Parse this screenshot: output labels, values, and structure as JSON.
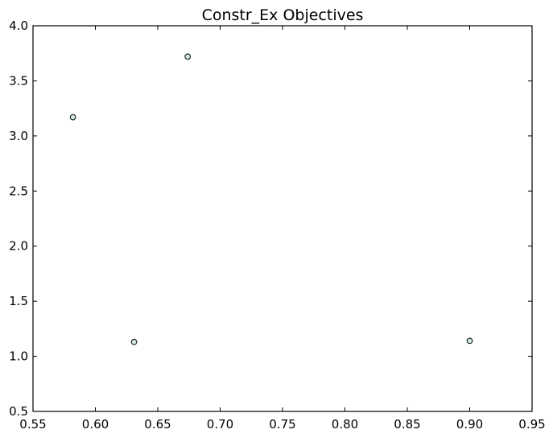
{
  "chart_data": {
    "type": "scatter",
    "title": "Constr_Ex Objectives",
    "xlabel": "",
    "ylabel": "",
    "xlim": [
      0.55,
      0.95
    ],
    "ylim": [
      0.5,
      4.0
    ],
    "xticks": [
      0.55,
      0.6,
      0.65,
      0.7,
      0.75,
      0.8,
      0.85,
      0.9,
      0.95
    ],
    "xtick_labels": [
      "0.55",
      "0.60",
      "0.65",
      "0.70",
      "0.75",
      "0.80",
      "0.85",
      "0.90",
      "0.95"
    ],
    "yticks": [
      0.5,
      1.0,
      1.5,
      2.0,
      2.5,
      3.0,
      3.5,
      4.0
    ],
    "ytick_labels": [
      "0.5",
      "1.0",
      "1.5",
      "2.0",
      "2.5",
      "3.0",
      "3.5",
      "4.0"
    ],
    "grid": false,
    "marker_fill": "#d4ebe4",
    "marker_edge": "#1f2a28",
    "series": [
      {
        "points": [
          {
            "x": 0.582,
            "y": 3.17
          },
          {
            "x": 0.674,
            "y": 3.72
          },
          {
            "x": 0.631,
            "y": 1.13
          },
          {
            "x": 0.9,
            "y": 1.14
          }
        ]
      }
    ]
  }
}
